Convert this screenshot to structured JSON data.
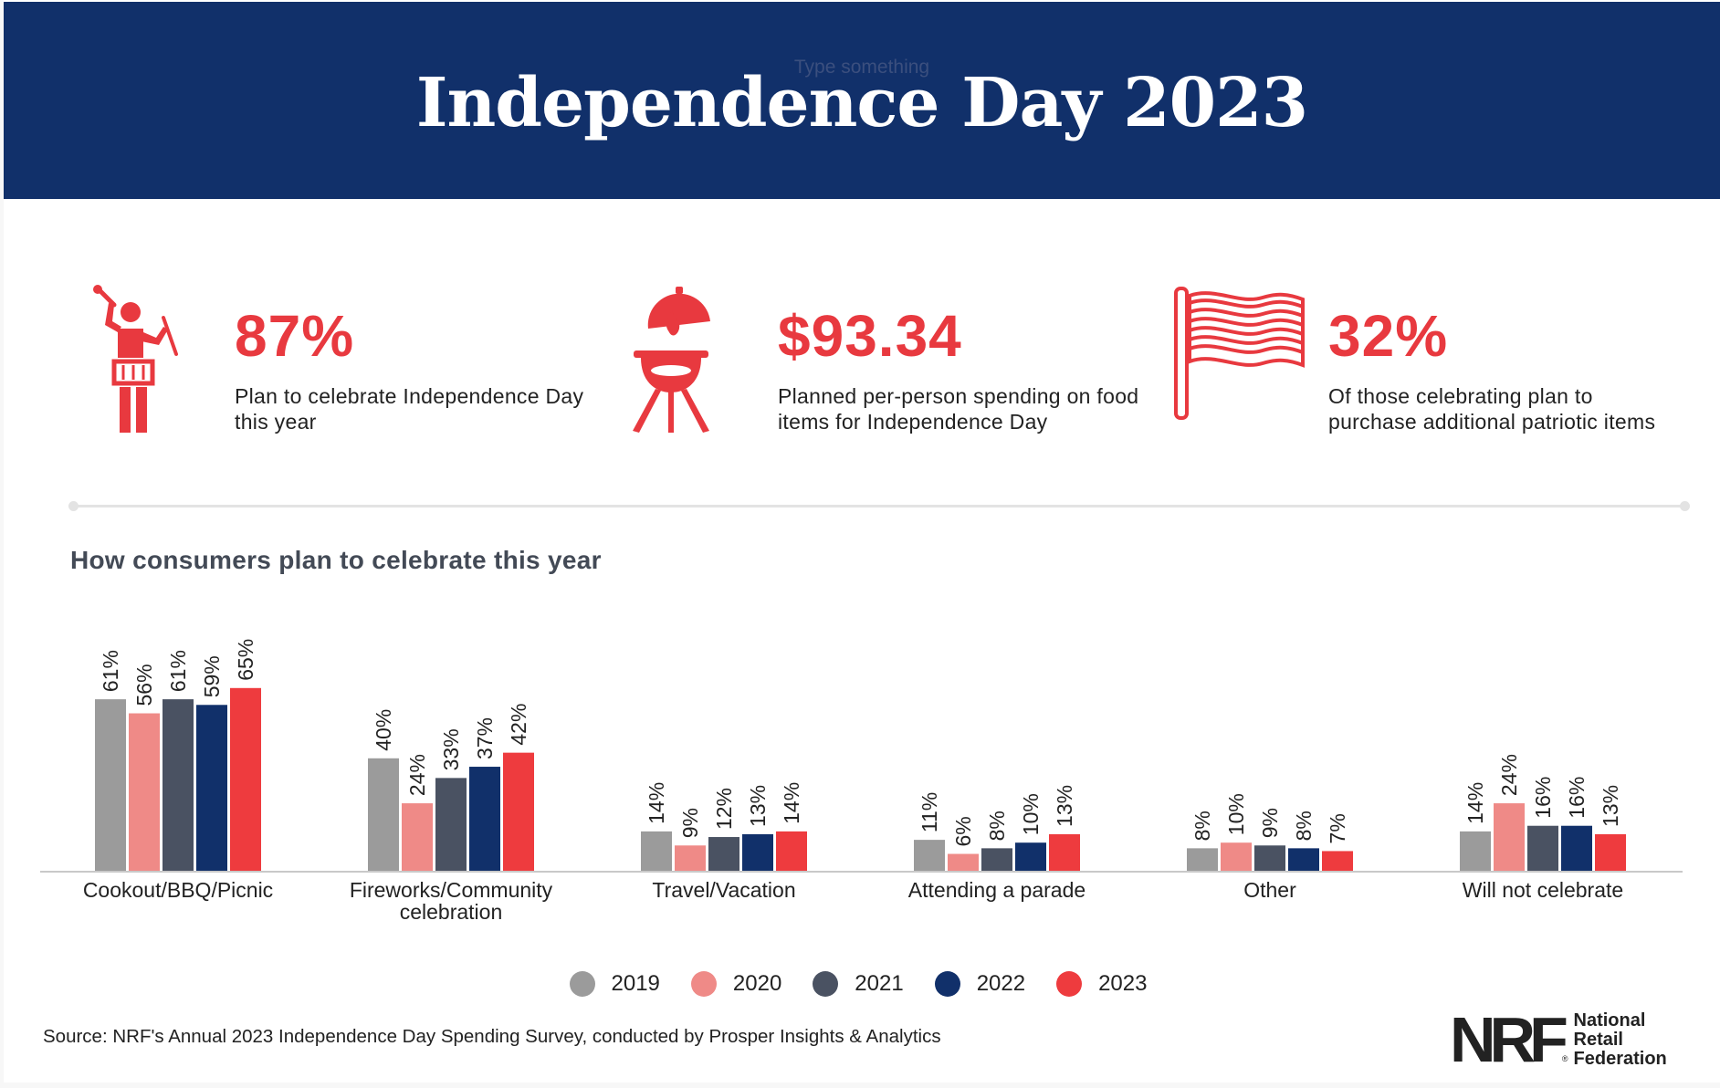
{
  "header": {
    "ghost_text": "Type something",
    "title": "Independence Day 2023"
  },
  "stats": [
    {
      "value": "87%",
      "description": "Plan to celebrate Independence Day this year",
      "icon": "drummer-icon"
    },
    {
      "value": "$93.34",
      "description": "Planned per-person spending on food items for Independence Day",
      "icon": "grill-icon"
    },
    {
      "value": "32%",
      "description": "Of those celebrating plan to purchase additional patriotic items",
      "icon": "flag-icon"
    }
  ],
  "section_title": "How consumers plan to celebrate this year",
  "chart_data": {
    "type": "bar",
    "title": "How consumers plan to celebrate this year",
    "categories": [
      "Cookout/BBQ/Picnic",
      "Fireworks/Community celebration",
      "Travel/Vacation",
      "Attending a parade",
      "Other",
      "Will not celebrate"
    ],
    "category_lines": [
      [
        "Cookout/BBQ/Picnic"
      ],
      [
        "Fireworks/Community",
        "celebration"
      ],
      [
        "Travel/Vacation"
      ],
      [
        "Attending a parade"
      ],
      [
        "Other"
      ],
      [
        "Will not celebrate"
      ]
    ],
    "series": [
      {
        "name": "2019",
        "color": "#9b9b9b",
        "values": [
          61,
          40,
          14,
          11,
          8,
          14
        ]
      },
      {
        "name": "2020",
        "color": "#ef8a87",
        "values": [
          56,
          24,
          9,
          6,
          10,
          24
        ]
      },
      {
        "name": "2021",
        "color": "#4a5262",
        "values": [
          61,
          33,
          12,
          8,
          9,
          16
        ]
      },
      {
        "name": "2022",
        "color": "#11306a",
        "values": [
          59,
          37,
          13,
          10,
          8,
          16
        ]
      },
      {
        "name": "2023",
        "color": "#ee3b3e",
        "values": [
          65,
          42,
          14,
          13,
          7,
          13
        ]
      }
    ],
    "value_suffix": "%",
    "xlabel": "",
    "ylabel": "",
    "ylim": [
      0,
      65
    ],
    "legend_position": "bottom-center"
  },
  "source": "Source: NRF's Annual 2023 Independence Day Spending Survey, conducted by Prosper Insights & Analytics",
  "logo": {
    "mark": "NRF",
    "registered": "®",
    "name_lines": [
      "National",
      "Retail",
      "Federation"
    ]
  },
  "colors": {
    "navy": "#11306a",
    "accent_red": "#e8393f"
  }
}
